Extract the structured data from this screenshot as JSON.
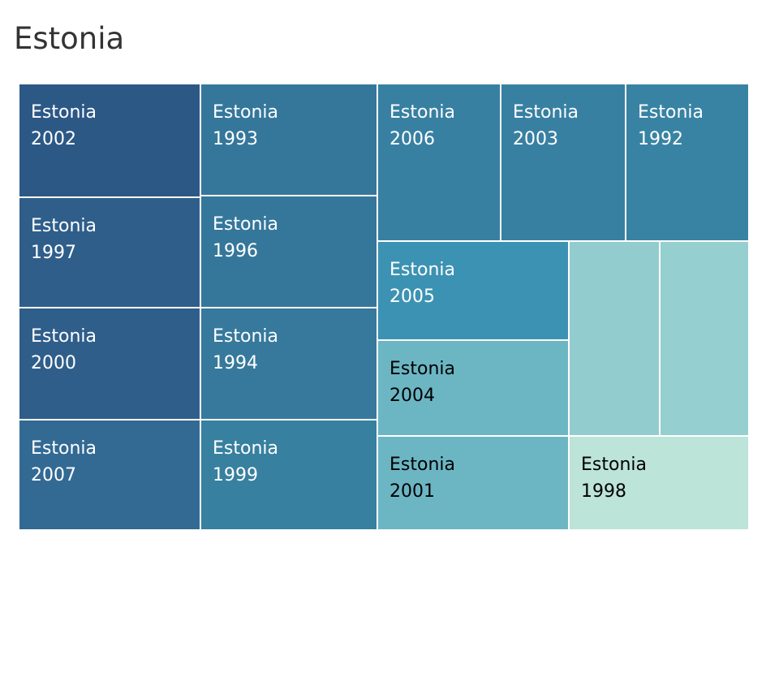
{
  "chart_data": {
    "type": "treemap",
    "title": "Estonia",
    "tiles": [
      {
        "label": "Estonia",
        "year": "2002",
        "color": "#2c5886",
        "text_color": "#ffffff"
      },
      {
        "label": "Estonia",
        "year": "1997",
        "color": "#2f5e8a",
        "text_color": "#ffffff"
      },
      {
        "label": "Estonia",
        "year": "2000",
        "color": "#2f5e8a",
        "text_color": "#ffffff"
      },
      {
        "label": "Estonia",
        "year": "2007",
        "color": "#326a93",
        "text_color": "#ffffff"
      },
      {
        "label": "Estonia",
        "year": "1993",
        "color": "#35779b",
        "text_color": "#ffffff"
      },
      {
        "label": "Estonia",
        "year": "1996",
        "color": "#35779b",
        "text_color": "#ffffff"
      },
      {
        "label": "Estonia",
        "year": "1994",
        "color": "#36799c",
        "text_color": "#ffffff"
      },
      {
        "label": "Estonia",
        "year": "1999",
        "color": "#37809f",
        "text_color": "#ffffff"
      },
      {
        "label": "Estonia",
        "year": "2006",
        "color": "#3880a2",
        "text_color": "#ffffff"
      },
      {
        "label": "Estonia",
        "year": "2003",
        "color": "#3880a2",
        "text_color": "#ffffff"
      },
      {
        "label": "Estonia",
        "year": "1992",
        "color": "#3883a3",
        "text_color": "#ffffff"
      },
      {
        "label": "Estonia",
        "year": "2005",
        "color": "#3c92b2",
        "text_color": "#ffffff"
      },
      {
        "label": "Estonia",
        "year": "2004",
        "color": "#6cb6c4",
        "text_color": "#000000"
      },
      {
        "label": "Estonia",
        "year": "2001",
        "color": "#6cb6c4",
        "text_color": "#000000"
      },
      {
        "label": "",
        "year": "",
        "color": "#93cccf",
        "text_color": "#000000"
      },
      {
        "label": "",
        "year": "",
        "color": "#95cfd0",
        "text_color": "#000000"
      },
      {
        "label": "Estonia",
        "year": "1998",
        "color": "#bce4d8",
        "text_color": "#000000"
      }
    ]
  }
}
